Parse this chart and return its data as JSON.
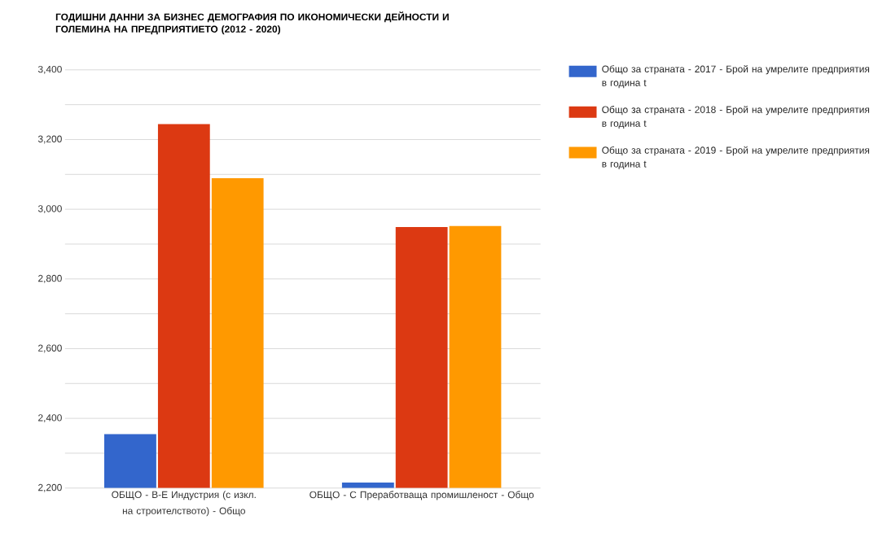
{
  "chart_data": {
    "type": "bar",
    "title": "ГОДИШНИ ДАННИ ЗА БИЗНЕС ДЕМОГРАФИЯ ПО ИКОНОМИЧЕСКИ ДЕЙНОСТИ И ГОЛЕМИНА НА ПРЕДПРИЯТИЕТО (2012 - 2020)",
    "categories": [
      "ОБЩО - B-E Индустрия (с изкл. на строителството) - Общо",
      "ОБЩО - C Преработваща промишленост - Общо"
    ],
    "series": [
      {
        "name": "Общо за страната - 2017 - Брой на умрелите предприятия в година t",
        "color": "#3366cc",
        "values": [
          2355,
          2216
        ]
      },
      {
        "name": "Общо за страната - 2018 - Брой на умрелите предприятия в година t",
        "color": "#dc3912",
        "values": [
          3244,
          2949
        ]
      },
      {
        "name": "Общо за страната - 2019 - Брой на умрелите предприятия в година t",
        "color": "#ff9900",
        "values": [
          3089,
          2952
        ]
      }
    ],
    "ylim": [
      2200,
      3400
    ],
    "yticks": [
      {
        "value": 2200,
        "label": "2,200"
      },
      {
        "value": 2300,
        "label": null
      },
      {
        "value": 2400,
        "label": "2,400"
      },
      {
        "value": 2500,
        "label": null
      },
      {
        "value": 2600,
        "label": "2,600"
      },
      {
        "value": 2700,
        "label": null
      },
      {
        "value": 2800,
        "label": "2,800"
      },
      {
        "value": 2900,
        "label": null
      },
      {
        "value": 3000,
        "label": "3,000"
      },
      {
        "value": 3100,
        "label": null
      },
      {
        "value": 3200,
        "label": "3,200"
      },
      {
        "value": 3300,
        "label": null
      },
      {
        "value": 3400,
        "label": "3,400"
      }
    ],
    "grid": "y",
    "legend": "right"
  }
}
